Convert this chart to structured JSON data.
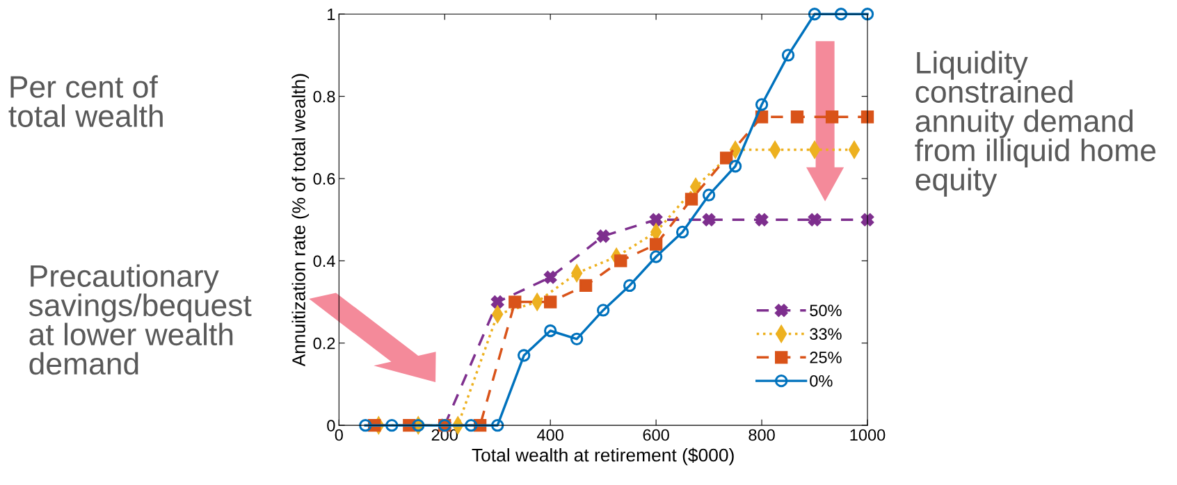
{
  "chart_data": {
    "type": "line",
    "xlabel": "Total wealth at retirement ($000)",
    "ylabel": "Annuitization rate (% of total wealth)",
    "xlim": [
      0,
      1000
    ],
    "xticks": [
      0,
      200,
      400,
      600,
      800,
      1000
    ],
    "ylim": [
      0,
      1
    ],
    "yticks": [
      0,
      0.2,
      0.4,
      0.6,
      0.8,
      1
    ],
    "grid": false,
    "legend": "bottom right",
    "series": [
      {
        "name": "50%",
        "color": "#7e2f8e",
        "marker": "cross",
        "line_style": "dashed",
        "x": [
          200,
          300,
          400,
          500,
          600,
          700,
          800,
          900,
          1000
        ],
        "values": [
          0,
          0.3,
          0.36,
          0.46,
          0.5,
          0.5,
          0.5,
          0.5,
          0.5
        ]
      },
      {
        "name": "33%",
        "color": "#edb120",
        "marker": "diamond",
        "line_style": "dotted",
        "x": [
          75,
          150,
          225,
          300,
          375,
          450,
          525,
          600,
          675,
          750,
          825,
          900,
          975
        ],
        "values": [
          0,
          0,
          0,
          0.27,
          0.3,
          0.37,
          0.41,
          0.47,
          0.58,
          0.67,
          0.67,
          0.67,
          0.67
        ]
      },
      {
        "name": "25%",
        "color": "#d95319",
        "marker": "square",
        "line_style": "dashed",
        "x": [
          67,
          133,
          200,
          267,
          333,
          400,
          467,
          533,
          600,
          667,
          733,
          800,
          867,
          933,
          1000
        ],
        "values": [
          0,
          0,
          0,
          0,
          0.3,
          0.3,
          0.34,
          0.4,
          0.44,
          0.55,
          0.65,
          0.75,
          0.75,
          0.75,
          0.75
        ]
      },
      {
        "name": "0%",
        "color": "#0072bd",
        "marker": "circle",
        "line_style": "solid",
        "x": [
          50,
          100,
          150,
          200,
          250,
          300,
          350,
          400,
          450,
          500,
          550,
          600,
          650,
          700,
          750,
          800,
          850,
          900,
          950,
          1000
        ],
        "values": [
          0,
          0,
          0,
          0,
          0,
          0,
          0.17,
          0.23,
          0.21,
          0.28,
          0.34,
          0.41,
          0.47,
          0.56,
          0.63,
          0.78,
          0.9,
          1,
          1,
          1
        ]
      }
    ],
    "annotations": [
      "Per cent of\ntotal wealth",
      "Precautionary\nsavings/bequest\nat lower wealth\ndemand",
      "Liquidity\nconstrained\nannuity demand\nfrom illiquid home\nequity"
    ]
  }
}
